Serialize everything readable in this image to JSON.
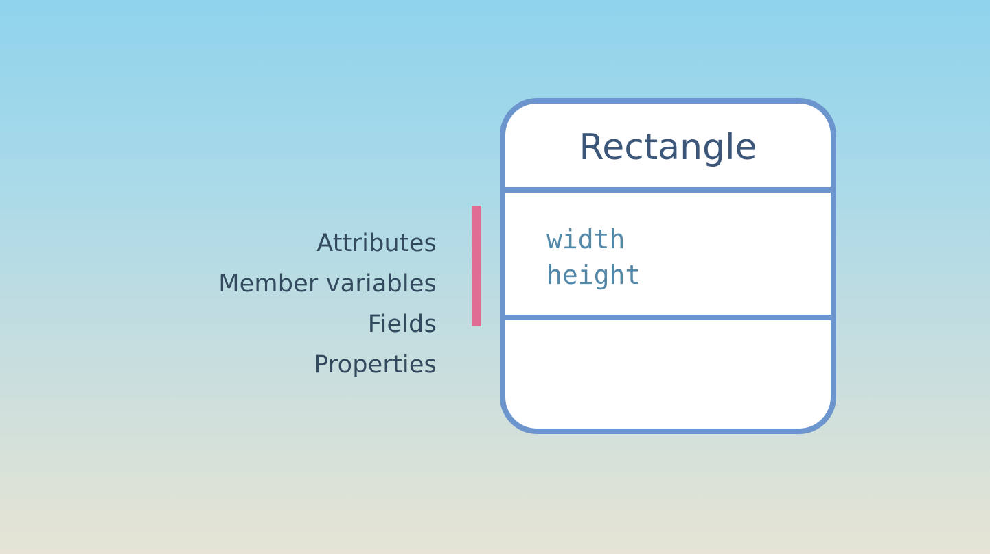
{
  "synonyms": [
    "Attributes",
    "Member variables",
    "Fields",
    "Properties"
  ],
  "uml_class": {
    "name": "Rectangle",
    "attributes": [
      "width",
      "height"
    ],
    "methods": []
  },
  "colors": {
    "box_border": "#6b95cc",
    "marker": "#e06d93",
    "label_text": "#334a5e",
    "attribute_text": "#5488a8"
  }
}
